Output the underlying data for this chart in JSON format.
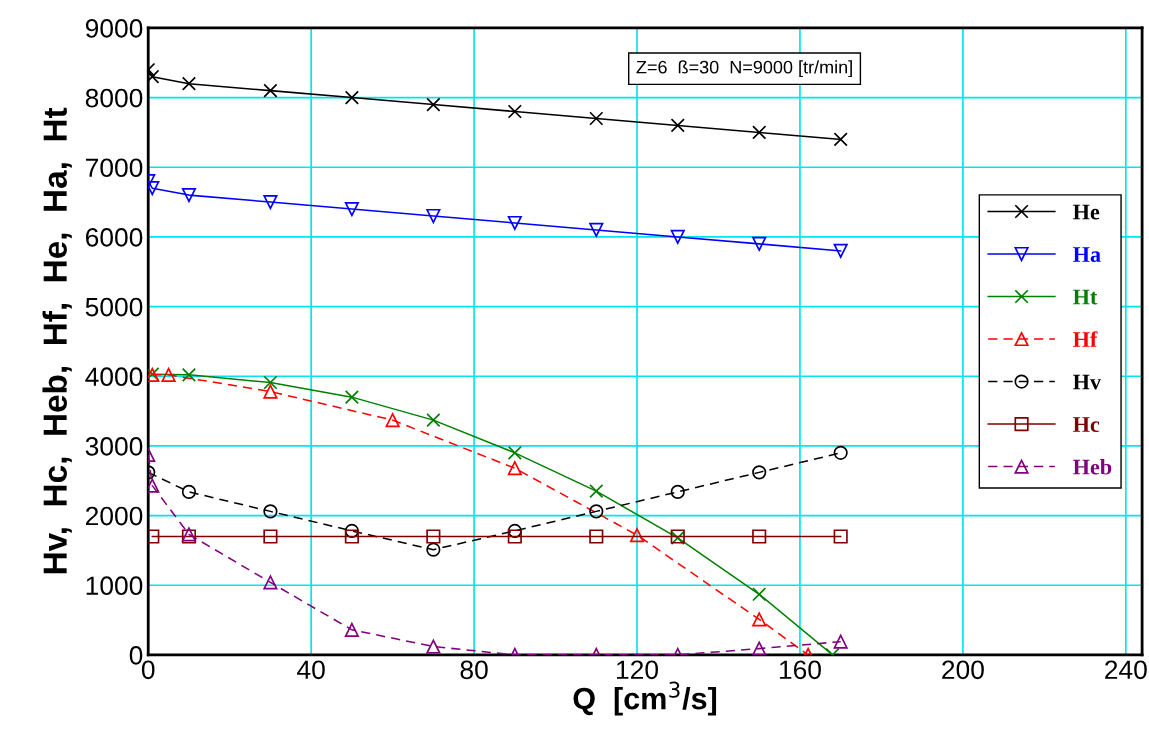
{
  "chart_data": {
    "type": "line",
    "xlabel": "Q  [cm$^{3}$/s]",
    "ylabel": "Hv,  Hc,  Heb,  Hf,  He,  Ha,  Ht",
    "annotations": [
      "Z=6  ß=30  N=9000 [tr/min]"
    ],
    "xlim": [
      0,
      244
    ],
    "xticks": [
      0,
      40,
      80,
      120,
      160,
      200,
      240
    ],
    "ylim": [
      0,
      9000
    ],
    "yticks": [
      0,
      1000,
      2000,
      3000,
      4000,
      5000,
      6000,
      7000,
      8000,
      9000
    ],
    "grid": true,
    "legend": "right",
    "series": [
      {
        "name": "He",
        "color": "#000000",
        "marker": "cross",
        "line_style": "solid",
        "x": [
          0,
          1,
          10,
          30,
          50,
          70,
          90,
          110,
          130,
          150,
          170
        ],
        "values": [
          8400,
          8300,
          8200,
          8100,
          8000,
          7900,
          7800,
          7700,
          7600,
          7500,
          7400
        ]
      },
      {
        "name": "Ha",
        "color": "#0000ff",
        "marker": "triangle_down",
        "line_style": "solid",
        "x": [
          0,
          1,
          10,
          30,
          50,
          70,
          90,
          110,
          130,
          150,
          170
        ],
        "values": [
          6800,
          6700,
          6600,
          6500,
          6400,
          6300,
          6200,
          6100,
          6000,
          5900,
          5800
        ]
      },
      {
        "name": "Ht",
        "color": "#008000",
        "marker": "cross",
        "line_style": "solid",
        "x": [
          1,
          10,
          30,
          50,
          70,
          90,
          110,
          130,
          150,
          168
        ],
        "values": [
          4030,
          4020,
          3910,
          3700,
          3370,
          2900,
          2350,
          1680,
          870,
          0
        ]
      },
      {
        "name": "Hf",
        "color": "#ff0000",
        "marker": "triangle",
        "line_style": "dashed",
        "x": [
          1,
          5,
          30,
          60,
          90,
          120,
          150,
          162
        ],
        "values": [
          4020,
          4020,
          3780,
          3370,
          2680,
          1720,
          510,
          0
        ]
      },
      {
        "name": "Hv",
        "color": "#000000",
        "marker": "circle",
        "line_style": "dashed",
        "x": [
          0,
          10,
          30,
          50,
          70,
          90,
          110,
          130,
          150,
          170
        ],
        "values": [
          2620,
          2340,
          2060,
          1780,
          1510,
          1780,
          2060,
          2340,
          2620,
          2900
        ]
      },
      {
        "name": "Hc",
        "color": "#800000",
        "marker": "square",
        "line_style": "solid",
        "x": [
          1,
          10,
          30,
          50,
          70,
          90,
          110,
          130,
          150,
          170
        ],
        "values": [
          1700,
          1700,
          1700,
          1700,
          1700,
          1700,
          1700,
          1700,
          1700,
          1700
        ]
      },
      {
        "name": "Heb",
        "color": "#800080",
        "marker": "triangle",
        "line_style": "dashed",
        "x": [
          0,
          1,
          10,
          30,
          50,
          70,
          90,
          110,
          130,
          150,
          170
        ],
        "values": [
          2870,
          2430,
          1730,
          1040,
          360,
          120,
          0,
          0,
          0,
          90,
          190
        ]
      }
    ]
  }
}
